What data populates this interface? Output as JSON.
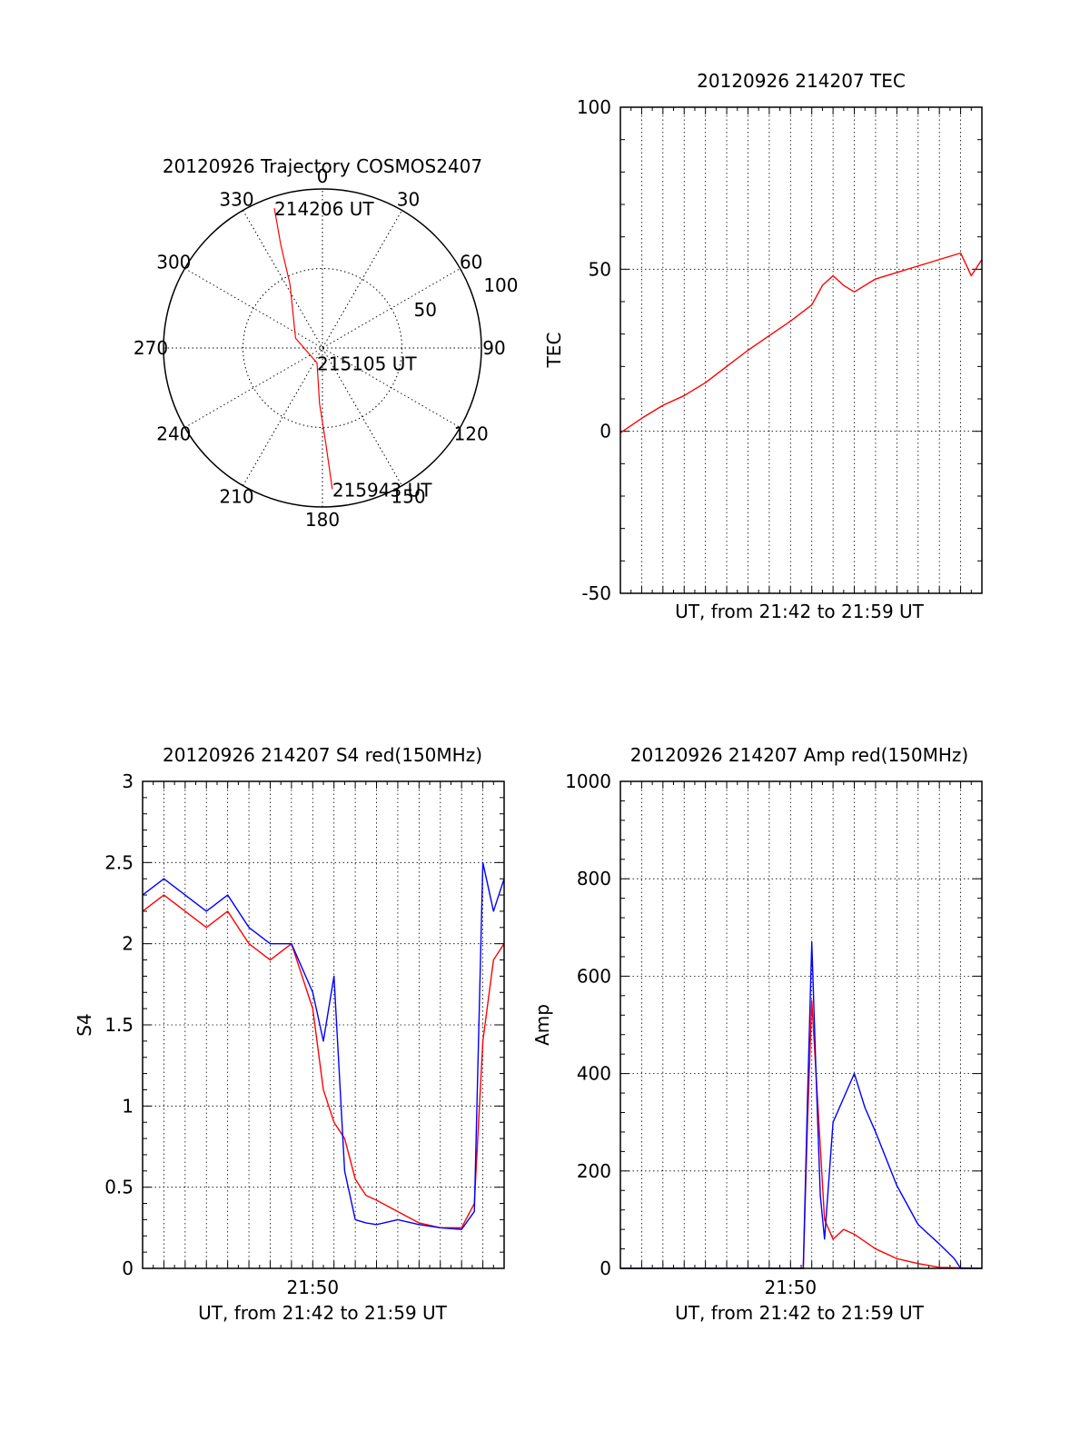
{
  "colors": {
    "red": "#ff0000",
    "blue": "#0000ff",
    "grid": "#000000"
  },
  "chart_data": [
    {
      "id": "polar",
      "type": "polar",
      "title": "20120926 Trajectory COSMOS2407",
      "angle_labels": [
        "0",
        "30",
        "60",
        "90",
        "120",
        "150",
        "180",
        "210",
        "240",
        "270",
        "300",
        "330"
      ],
      "radial_ticks": [
        50,
        100
      ],
      "radial_tick_labels": [
        "50",
        "100"
      ],
      "rlim": [
        0,
        100
      ],
      "points": [
        {
          "az": 341,
          "zen": 93
        },
        {
          "az": 338,
          "zen": 70
        },
        {
          "az": 333,
          "zen": 45
        },
        {
          "az": 290,
          "zen": 18
        },
        {
          "az": 200,
          "zen": 10
        },
        {
          "az": 183,
          "zen": 35
        },
        {
          "az": 178,
          "zen": 60
        },
        {
          "az": 176,
          "zen": 89
        }
      ],
      "annotations": [
        {
          "text": "214206 UT",
          "az": 341,
          "zen": 93
        },
        {
          "text": "215105 UT",
          "az": 200,
          "zen": 10
        },
        {
          "text": "215943 UT",
          "az": 176,
          "zen": 89
        }
      ]
    },
    {
      "id": "tec",
      "type": "line",
      "title": "20120926 214207 TEC",
      "ylabel": "TEC",
      "xlabel": "UT, from 21:42 to 21:59 UT",
      "xlim": [
        0,
        17
      ],
      "ylim": [
        -50,
        100
      ],
      "yticks": [
        -50,
        0,
        50,
        100
      ],
      "xticklabels": [],
      "grid": true,
      "series": [
        {
          "color": "red",
          "x": [
            0,
            1,
            2,
            3,
            4,
            5,
            6,
            7,
            8,
            9,
            9.5,
            10,
            10.5,
            11,
            12,
            13,
            14,
            15,
            16,
            16.5,
            16.8,
            17
          ],
          "y": [
            -0.5,
            4,
            8,
            11,
            15,
            20,
            25,
            29.5,
            34,
            39,
            45,
            48,
            45,
            43,
            47,
            49,
            51,
            53,
            55,
            48,
            51,
            53
          ]
        }
      ]
    },
    {
      "id": "s4",
      "type": "line",
      "title": "20120926 214207 S4 red(150MHz)",
      "ylabel": "S4",
      "xlabel": "UT, from 21:42 to 21:59 UT",
      "xlim": [
        0,
        17
      ],
      "ylim": [
        0,
        3
      ],
      "yticks": [
        0,
        0.5,
        1,
        1.5,
        2,
        2.5,
        3
      ],
      "xticks": [
        8
      ],
      "xticklabels": [
        "21:50"
      ],
      "grid": true,
      "series": [
        {
          "color": "red",
          "x": [
            0,
            1,
            2,
            3,
            4,
            5,
            6,
            7,
            8,
            8.5,
            9,
            9.5,
            10,
            10.5,
            11,
            12,
            13,
            14,
            15,
            15.6,
            16,
            16.5,
            17
          ],
          "y": [
            2.2,
            2.3,
            2.2,
            2.1,
            2.2,
            2.0,
            1.9,
            2.0,
            1.6,
            1.1,
            0.9,
            0.8,
            0.55,
            0.45,
            0.42,
            0.35,
            0.28,
            0.25,
            0.25,
            0.4,
            1.4,
            1.9,
            2.0
          ]
        },
        {
          "color": "blue",
          "x": [
            0,
            1,
            2,
            3,
            4,
            5,
            6,
            7,
            8,
            8.5,
            9,
            9.5,
            10,
            10.5,
            11,
            12,
            13,
            14,
            15,
            15.6,
            16,
            16.5,
            17
          ],
          "y": [
            2.3,
            2.4,
            2.3,
            2.2,
            2.3,
            2.1,
            2.0,
            2.0,
            1.7,
            1.4,
            1.8,
            0.6,
            0.3,
            0.28,
            0.27,
            0.3,
            0.27,
            0.25,
            0.24,
            0.35,
            2.5,
            2.2,
            2.4
          ]
        }
      ]
    },
    {
      "id": "amp",
      "type": "line",
      "title": "20120926 214207 Amp red(150MHz)",
      "ylabel": "Amp",
      "xlabel": "UT, from 21:42 to 21:59 UT",
      "xlim": [
        0,
        17
      ],
      "ylim": [
        0,
        1000
      ],
      "yticks": [
        0,
        200,
        400,
        600,
        800,
        1000
      ],
      "xticks": [
        8
      ],
      "xticklabels": [
        "21:50"
      ],
      "grid": true,
      "series": [
        {
          "color": "red",
          "x": [
            0,
            8.6,
            8.8,
            9.0,
            9.2,
            9.4,
            9.6,
            10,
            10.5,
            11,
            12,
            13,
            14,
            15,
            17
          ],
          "y": [
            0,
            0,
            300,
            550,
            400,
            250,
            100,
            60,
            80,
            70,
            40,
            20,
            10,
            2,
            0
          ]
        },
        {
          "color": "blue",
          "x": [
            0,
            8.6,
            8.8,
            9.0,
            9.2,
            9.4,
            9.6,
            10,
            10.5,
            11,
            11.5,
            12,
            13,
            14,
            15,
            15.7,
            16,
            17
          ],
          "y": [
            0,
            0,
            350,
            670,
            400,
            150,
            60,
            300,
            350,
            400,
            330,
            280,
            170,
            90,
            50,
            20,
            0,
            0
          ]
        }
      ]
    }
  ]
}
